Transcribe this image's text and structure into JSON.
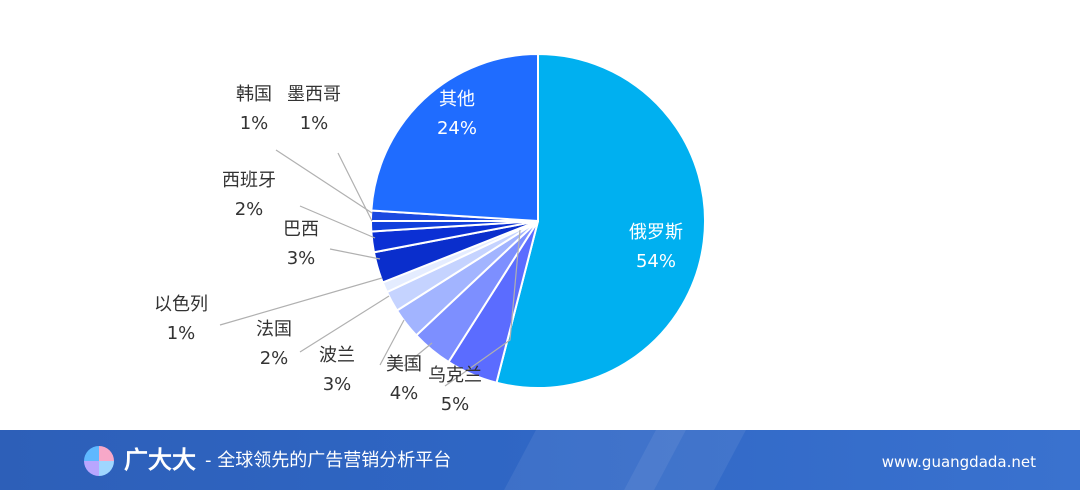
{
  "chart_data": {
    "type": "pie",
    "title": "",
    "slices": [
      {
        "label": "俄罗斯",
        "value": 54,
        "display": "54%",
        "color": "#00b0f0"
      },
      {
        "label": "乌克兰",
        "value": 5,
        "display": "5%",
        "color": "#5b6cff"
      },
      {
        "label": "美国",
        "value": 4,
        "display": "4%",
        "color": "#7d8fff"
      },
      {
        "label": "波兰",
        "value": 3,
        "display": "3%",
        "color": "#a2b4ff"
      },
      {
        "label": "法国",
        "value": 2,
        "display": "2%",
        "color": "#c5d3ff"
      },
      {
        "label": "以色列",
        "value": 1,
        "display": "1%",
        "color": "#e4ecff"
      },
      {
        "label": "巴西",
        "value": 3,
        "display": "3%",
        "color": "#0a2ecc"
      },
      {
        "label": "西班牙",
        "value": 2,
        "display": "2%",
        "color": "#0b30d4"
      },
      {
        "label": "墨西哥",
        "value": 1,
        "display": "1%",
        "color": "#1240dc"
      },
      {
        "label": "韩国",
        "value": 1,
        "display": "1%",
        "color": "#1a49e0"
      },
      {
        "label": "其他",
        "value": 24,
        "display": "24%",
        "color": "#1f6cff"
      }
    ],
    "legend": "none"
  },
  "footer": {
    "brand": "广大大",
    "slogan": "- 全球领先的广告营销分析平台",
    "website": "www.guangdada.net",
    "logo_icon": "guangdada-logo-icon"
  }
}
